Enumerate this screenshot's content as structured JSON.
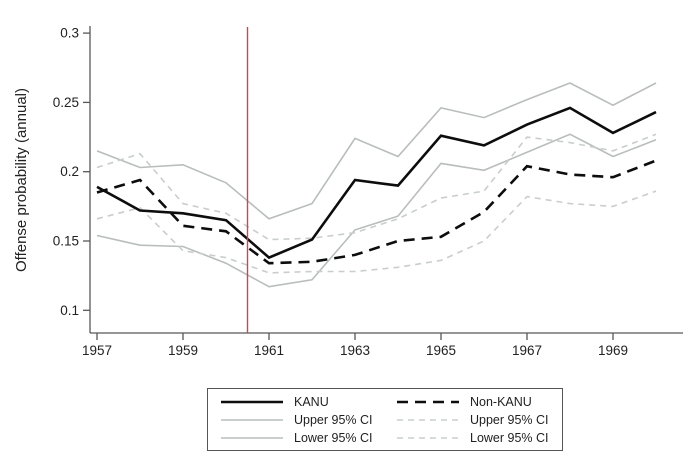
{
  "chart_data": {
    "type": "line",
    "title": "",
    "xlabel": "",
    "ylabel": "Offense probability (annual)",
    "x": [
      1957,
      1958,
      1959,
      1960,
      1961,
      1962,
      1963,
      1964,
      1965,
      1966,
      1967,
      1968,
      1969,
      1970
    ],
    "x_ticks": [
      1957,
      1959,
      1961,
      1963,
      1965,
      1967,
      1969
    ],
    "x_tick_labels": [
      "1957",
      "1959",
      "1961",
      "1963",
      "1965",
      "1967",
      "1969"
    ],
    "y_ticks": [
      0.1,
      0.15,
      0.2,
      0.25,
      0.3
    ],
    "y_tick_labels": [
      "0.1",
      "0.15",
      "0.2",
      "0.25",
      "0.3"
    ],
    "xlim": [
      1956.84,
      1970.63
    ],
    "ylim": [
      0.0835,
      0.306
    ],
    "grid": false,
    "legend_position": "bottom-center",
    "reference_line": {
      "x": 1960.5,
      "color": "#d2434e",
      "width": 1.4
    },
    "axis_color": "#585858",
    "text_color": "#222222",
    "series": [
      {
        "key": "kanu",
        "name": "KANU",
        "color": "#0d0d0d",
        "dash": null,
        "width": 2.6,
        "values": [
          0.189,
          0.172,
          0.17,
          0.165,
          0.138,
          0.151,
          0.194,
          0.19,
          0.226,
          0.219,
          0.234,
          0.246,
          0.228,
          0.243
        ]
      },
      {
        "key": "non_kanu",
        "name": "Non-KANU",
        "color": "#0d0d0d",
        "dash": "11,7",
        "width": 2.6,
        "values": [
          0.185,
          0.194,
          0.161,
          0.157,
          0.134,
          0.135,
          0.14,
          0.15,
          0.153,
          0.171,
          0.204,
          0.198,
          0.196,
          0.208
        ]
      },
      {
        "key": "kanu_upper_95_ci",
        "name": "Upper 95% CI",
        "color": "#b9bdbd",
        "dash": null,
        "width": 1.6,
        "values": [
          0.215,
          0.203,
          0.205,
          0.192,
          0.166,
          0.177,
          0.224,
          0.211,
          0.246,
          0.239,
          0.252,
          0.264,
          0.248,
          0.264
        ]
      },
      {
        "key": "kanu_lower_95_ci",
        "name": "Lower 95% CI",
        "color": "#b9bdbd",
        "dash": null,
        "width": 1.6,
        "values": [
          0.154,
          0.147,
          0.146,
          0.134,
          0.117,
          0.122,
          0.158,
          0.168,
          0.206,
          0.201,
          0.214,
          0.227,
          0.211,
          0.223
        ]
      },
      {
        "key": "non_kanu_upper_95_ci",
        "name": "Upper 95% CI",
        "color": "#c9cdcd",
        "dash": "6,5",
        "width": 1.6,
        "values": [
          0.203,
          0.213,
          0.177,
          0.17,
          0.151,
          0.152,
          0.156,
          0.166,
          0.181,
          0.186,
          0.225,
          0.221,
          0.215,
          0.227
        ]
      },
      {
        "key": "non_kanu_lower_95_ci",
        "name": "Lower 95% CI",
        "color": "#c9cdcd",
        "dash": "6,5",
        "width": 1.6,
        "values": [
          0.166,
          0.174,
          0.143,
          0.138,
          0.127,
          0.128,
          0.128,
          0.131,
          0.136,
          0.15,
          0.182,
          0.177,
          0.175,
          0.186
        ]
      }
    ],
    "legend_columns": [
      [
        0,
        2,
        3
      ],
      [
        1,
        4,
        5
      ]
    ]
  }
}
